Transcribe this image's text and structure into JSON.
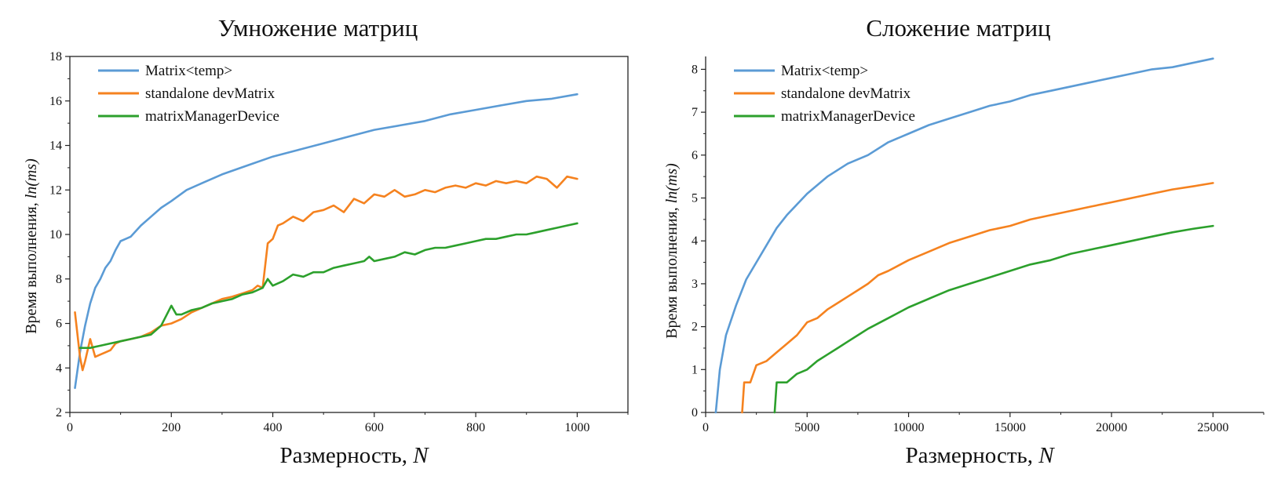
{
  "chart_data": [
    {
      "type": "line",
      "title": "Умножение матриц",
      "xlabel": "Размерность, N",
      "ylabel": "Время выполнения, ln(ms)",
      "xlim": [
        0,
        1100
      ],
      "ylim": [
        2,
        18
      ],
      "xticks": [
        0,
        200,
        400,
        600,
        800,
        1000
      ],
      "yticks": [
        2,
        4,
        6,
        8,
        10,
        12,
        14,
        16,
        18
      ],
      "series": [
        {
          "name": "Matrix<temp>",
          "color": "#5b9bd5",
          "x": [
            10,
            20,
            30,
            40,
            50,
            60,
            70,
            80,
            90,
            100,
            110,
            120,
            140,
            160,
            180,
            200,
            230,
            260,
            300,
            350,
            400,
            450,
            500,
            550,
            600,
            650,
            700,
            750,
            800,
            850,
            900,
            950,
            1000
          ],
          "y": [
            3.1,
            4.7,
            5.9,
            6.9,
            7.6,
            8.0,
            8.5,
            8.8,
            9.3,
            9.7,
            9.8,
            9.9,
            10.4,
            10.8,
            11.2,
            11.5,
            12.0,
            12.3,
            12.7,
            13.1,
            13.5,
            13.8,
            14.1,
            14.4,
            14.7,
            14.9,
            15.1,
            15.4,
            15.6,
            15.8,
            16.0,
            16.1,
            16.3
          ]
        },
        {
          "name": "standalone devMatrix",
          "color": "#f5821f",
          "x": [
            10,
            20,
            25,
            30,
            40,
            50,
            60,
            70,
            80,
            90,
            100,
            120,
            140,
            160,
            180,
            200,
            220,
            240,
            260,
            280,
            300,
            320,
            340,
            360,
            370,
            380,
            390,
            400,
            410,
            420,
            440,
            460,
            480,
            500,
            520,
            540,
            560,
            580,
            600,
            620,
            640,
            660,
            680,
            700,
            720,
            740,
            760,
            780,
            800,
            820,
            840,
            860,
            880,
            900,
            920,
            940,
            960,
            980,
            1000
          ],
          "y": [
            6.5,
            4.5,
            3.9,
            4.3,
            5.3,
            4.5,
            4.6,
            4.7,
            4.8,
            5.1,
            5.2,
            5.3,
            5.4,
            5.6,
            5.9,
            6.0,
            6.2,
            6.5,
            6.7,
            6.9,
            7.1,
            7.2,
            7.35,
            7.5,
            7.7,
            7.6,
            9.6,
            9.8,
            10.4,
            10.5,
            10.8,
            10.6,
            11.0,
            11.1,
            11.3,
            11.0,
            11.6,
            11.4,
            11.8,
            11.7,
            12.0,
            11.7,
            11.8,
            12.0,
            11.9,
            12.1,
            12.2,
            12.1,
            12.3,
            12.2,
            12.4,
            12.3,
            12.4,
            12.3,
            12.6,
            12.5,
            12.1,
            12.6,
            12.5
          ]
        },
        {
          "name": "matrixManagerDevice",
          "color": "#2ca02c",
          "x": [
            20,
            40,
            60,
            80,
            100,
            120,
            140,
            160,
            180,
            200,
            210,
            220,
            240,
            260,
            280,
            300,
            320,
            340,
            360,
            380,
            390,
            400,
            420,
            440,
            460,
            480,
            500,
            520,
            540,
            560,
            580,
            590,
            600,
            620,
            640,
            660,
            680,
            700,
            720,
            740,
            760,
            780,
            800,
            820,
            840,
            860,
            880,
            900,
            920,
            940,
            960,
            980,
            1000
          ],
          "y": [
            4.9,
            4.9,
            5.0,
            5.1,
            5.2,
            5.3,
            5.4,
            5.5,
            5.9,
            6.8,
            6.4,
            6.4,
            6.6,
            6.7,
            6.9,
            7.0,
            7.1,
            7.3,
            7.4,
            7.6,
            8.0,
            7.7,
            7.9,
            8.2,
            8.1,
            8.3,
            8.3,
            8.5,
            8.6,
            8.7,
            8.8,
            9.0,
            8.8,
            8.9,
            9.0,
            9.2,
            9.1,
            9.3,
            9.4,
            9.4,
            9.5,
            9.6,
            9.7,
            9.8,
            9.8,
            9.9,
            10.0,
            10.0,
            10.1,
            10.2,
            10.3,
            10.4,
            10.5
          ]
        }
      ]
    },
    {
      "type": "line",
      "title": "Сложение матриц",
      "xlabel": "Размерность, N",
      "ylabel": "Время выполнения, ln(ms)",
      "xlim": [
        0,
        27500
      ],
      "ylim": [
        0,
        8.3
      ],
      "xticks": [
        0,
        5000,
        10000,
        15000,
        20000,
        25000
      ],
      "yticks": [
        0,
        1,
        2,
        3,
        4,
        5,
        6,
        7,
        8
      ],
      "series": [
        {
          "name": "Matrix<temp>",
          "color": "#5b9bd5",
          "x": [
            500,
            700,
            1000,
            1500,
            2000,
            2500,
            3000,
            3500,
            4000,
            5000,
            6000,
            7000,
            8000,
            9000,
            10000,
            11000,
            12000,
            13000,
            14000,
            15000,
            16000,
            17000,
            18000,
            19000,
            20000,
            21000,
            22000,
            23000,
            24000,
            25000
          ],
          "y": [
            0,
            1.0,
            1.8,
            2.5,
            3.1,
            3.5,
            3.9,
            4.3,
            4.6,
            5.1,
            5.5,
            5.8,
            6.0,
            6.3,
            6.5,
            6.7,
            6.85,
            7.0,
            7.15,
            7.25,
            7.4,
            7.5,
            7.6,
            7.7,
            7.8,
            7.9,
            8.0,
            8.05,
            8.15,
            8.25
          ]
        },
        {
          "name": "standalone devMatrix",
          "color": "#f5821f",
          "x": [
            1800,
            1900,
            2000,
            2200,
            2500,
            3000,
            3500,
            4000,
            4500,
            5000,
            5500,
            6000,
            6500,
            7000,
            7500,
            8000,
            8500,
            9000,
            10000,
            11000,
            12000,
            13000,
            14000,
            15000,
            16000,
            17000,
            18000,
            19000,
            20000,
            21000,
            22000,
            23000,
            24000,
            25000
          ],
          "y": [
            0,
            0.7,
            0.7,
            0.7,
            1.1,
            1.2,
            1.4,
            1.6,
            1.8,
            2.1,
            2.2,
            2.4,
            2.55,
            2.7,
            2.85,
            3.0,
            3.2,
            3.3,
            3.55,
            3.75,
            3.95,
            4.1,
            4.25,
            4.35,
            4.5,
            4.6,
            4.7,
            4.8,
            4.9,
            5.0,
            5.1,
            5.2,
            5.27,
            5.35
          ]
        },
        {
          "name": "matrixManagerDevice",
          "color": "#2ca02c",
          "x": [
            3400,
            3500,
            3600,
            3800,
            4000,
            4500,
            5000,
            5500,
            6000,
            6500,
            7000,
            7500,
            8000,
            9000,
            10000,
            11000,
            12000,
            13000,
            14000,
            15000,
            16000,
            17000,
            18000,
            19000,
            20000,
            21000,
            22000,
            23000,
            24000,
            25000
          ],
          "y": [
            0,
            0.7,
            0.7,
            0.7,
            0.7,
            0.9,
            1.0,
            1.2,
            1.35,
            1.5,
            1.65,
            1.8,
            1.95,
            2.2,
            2.45,
            2.65,
            2.85,
            3.0,
            3.15,
            3.3,
            3.45,
            3.55,
            3.7,
            3.8,
            3.9,
            4.0,
            4.1,
            4.2,
            4.28,
            4.35
          ]
        }
      ]
    }
  ]
}
